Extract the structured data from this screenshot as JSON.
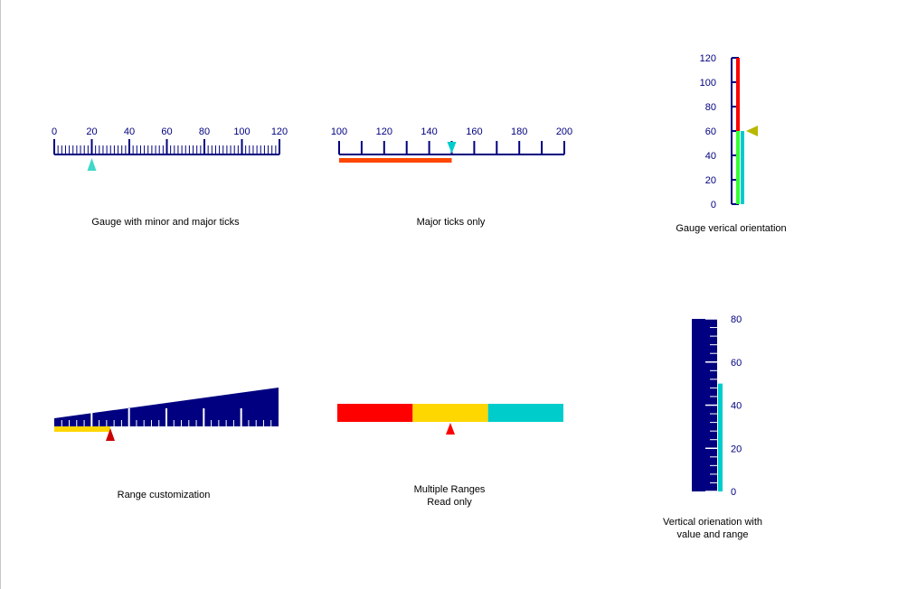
{
  "colors": {
    "scale": "#000080",
    "cyan": "#00cccc",
    "teal": "#40d8c8",
    "red": "#ff0000",
    "orange_red": "#ff4500",
    "gold": "#ffd700",
    "green": "#33ff33",
    "olive": "#b8b800",
    "dark_red": "#cc0000",
    "tick_white": "#ffffff"
  },
  "gauges": {
    "g1": {
      "caption": "Gauge with minor and major ticks",
      "min": 0,
      "max": 120,
      "major_step": 20,
      "minor_step": 2,
      "pointer": 20,
      "pointer_icon": "triangle-up-icon",
      "ticks": [
        "0",
        "20",
        "40",
        "60",
        "80",
        "100",
        "120"
      ]
    },
    "g2": {
      "caption": "Major ticks only",
      "min": 100,
      "max": 200,
      "major_step": 20,
      "minor_step": 10,
      "pointer": 150,
      "range_from": 100,
      "range_to": 150,
      "pointer_icon": "triangle-down-icon",
      "ticks": [
        "100",
        "120",
        "140",
        "160",
        "180",
        "200"
      ]
    },
    "g3": {
      "caption": "Gauge verical orientation",
      "min": 0,
      "max": 120,
      "major_step": 20,
      "pointer": 60,
      "ranges": [
        {
          "from": 0,
          "to": 60,
          "color": "green"
        },
        {
          "from": 60,
          "to": 120,
          "color": "red"
        }
      ],
      "value_bar": 60,
      "pointer_icon": "triangle-left-icon",
      "ticks": [
        "0",
        "20",
        "40",
        "60",
        "80",
        "100",
        "120"
      ]
    },
    "g4": {
      "caption": "Range customization",
      "min": 0,
      "max": 60,
      "major_step": 10,
      "minor_step": 2,
      "pointer": 15,
      "range_from": 0,
      "range_to": 15,
      "pointer_icon": "triangle-up-icon"
    },
    "g5": {
      "caption_line1": "Multiple Ranges",
      "caption_line2": "Read only",
      "min": 0,
      "max": 120,
      "pointer": 60,
      "ranges": [
        {
          "from": 0,
          "to": 40,
          "color": "red"
        },
        {
          "from": 40,
          "to": 80,
          "color": "gold"
        },
        {
          "from": 80,
          "to": 120,
          "color": "cyan"
        }
      ],
      "pointer_icon": "triangle-up-icon"
    },
    "g6": {
      "caption_line1": "Vertical orienation with",
      "caption_line2": "value and range",
      "min": 0,
      "max": 80,
      "major_step": 20,
      "minor_step": 4,
      "value": 50,
      "ticks": [
        "0",
        "20",
        "40",
        "60",
        "80"
      ]
    }
  }
}
